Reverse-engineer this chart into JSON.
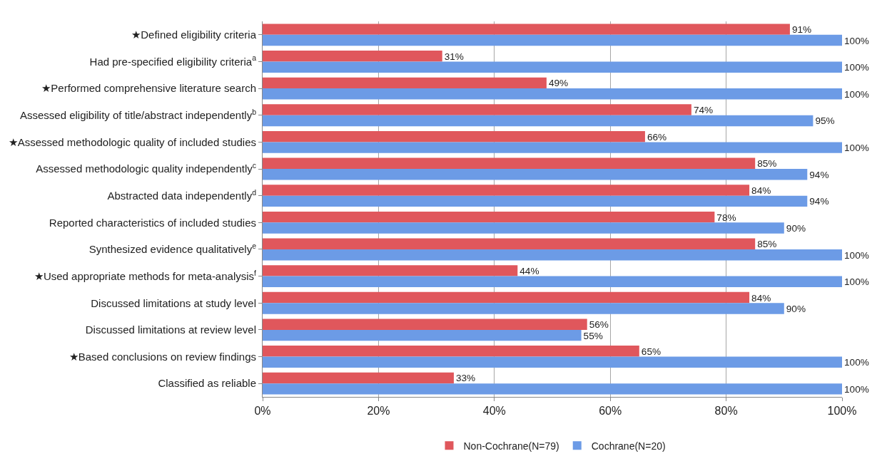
{
  "chart_data": {
    "type": "bar",
    "orientation": "horizontal",
    "categories": [
      "★Defined eligibility criteria",
      "Had pre-specified eligibility criteria$^{a}$",
      "★Performed comprehensive literature search",
      "Assessed eligibility of title/abstract independently$^{b}$",
      "★Assessed methodologic quality of included studies",
      "Assessed methodologic quality independently$^{c}$",
      "Abstracted data independently$^{d}$",
      "Reported characteristics of included studies",
      "Synthesized evidence qualitatively$^{e}$",
      "★Used appropriate methods for meta-analysis$^{f}$",
      "Discussed limitations at study level",
      "Discussed limitations at review level",
      "★Based conclusions on review findings",
      "Classified as reliable"
    ],
    "series": [
      {
        "name": "Non-Cochrane(N=79)",
        "color": "#e0575c",
        "values": [
          91,
          31,
          49,
          74,
          66,
          85,
          84,
          78,
          85,
          44,
          84,
          56,
          65,
          33
        ],
        "value_labels": [
          "91%",
          "31%",
          "49%",
          "74%",
          "66%",
          "85%",
          "84%",
          "78%",
          "85%",
          "44%",
          "84%",
          "56%",
          "65%",
          "33%"
        ]
      },
      {
        "name": "Cochrane(N=20)",
        "color": "#6c9be6",
        "values": [
          100,
          100,
          100,
          95,
          100,
          94,
          94,
          90,
          100,
          100,
          90,
          55,
          100,
          100
        ],
        "value_labels": [
          "100%",
          "100%",
          "100%",
          "95%",
          "100%",
          "94%",
          "94%",
          "90%",
          "100%",
          "100%",
          "90%",
          "55%",
          "100%",
          "100%"
        ]
      }
    ],
    "xlim": [
      0,
      100
    ],
    "xticks": [
      {
        "value": 0,
        "label": "0%"
      },
      {
        "value": 20,
        "label": "20%"
      },
      {
        "value": 40,
        "label": "40%"
      },
      {
        "value": 60,
        "label": "60%"
      },
      {
        "value": 80,
        "label": "80%"
      },
      {
        "value": 100,
        "label": "100%"
      }
    ],
    "grid": "x",
    "legend": "bottom"
  }
}
